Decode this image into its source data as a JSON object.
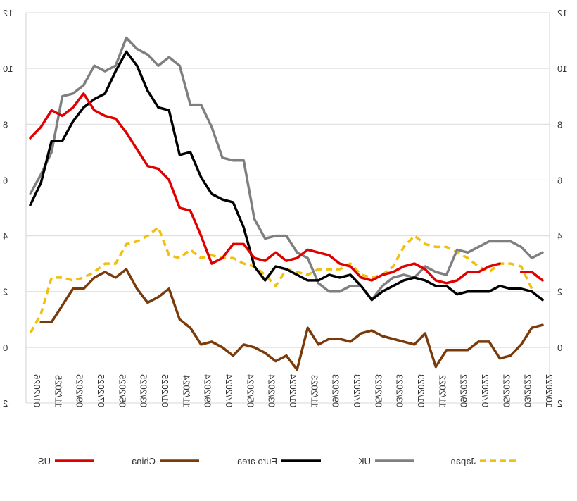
{
  "chart_data": {
    "type": "line",
    "mirrored": true,
    "title": "",
    "xlabel": "",
    "ylabel": "",
    "ylim": [
      -2,
      12
    ],
    "yticks": [
      "12",
      "10",
      "8",
      "6",
      "4",
      "2",
      "0",
      "-2"
    ],
    "gridlines": true,
    "legend_position": "bottom",
    "x_tick_labels": [
      "10/2022",
      "03/2022",
      "05/2022",
      "07/2022",
      "09/2022",
      "11/2022",
      "01/2023",
      "03/2023",
      "05/2023",
      "07/2023",
      "09/2023",
      "11/2023",
      "01/2024",
      "03/2024",
      "05/2024",
      "07/2024",
      "09/2024",
      "11/2024",
      "01/2025",
      "03/2025",
      "05/2025",
      "07/2025",
      "09/2025",
      "11/2025",
      "01/2026"
    ],
    "series": [
      {
        "name": "US",
        "color": "#e00000",
        "dash": false,
        "values": [
          2.4,
          2.7,
          2.7,
          null,
          3.0,
          2.9,
          2.7,
          2.7,
          2.4,
          2.3,
          2.4,
          2.8,
          3.0,
          2.9,
          2.7,
          2.6,
          2.4,
          2.5,
          2.9,
          3.0,
          3.3,
          3.4,
          3.5,
          3.2,
          3.1,
          3.4,
          3.1,
          3.2,
          3.7,
          3.7,
          3.2,
          3.0,
          4.0,
          4.9,
          5.0,
          6.0,
          6.4,
          6.5,
          7.1,
          7.7,
          8.2,
          8.3,
          8.5,
          9.1,
          8.6,
          8.3,
          8.5,
          7.9,
          7.5
        ]
      },
      {
        "name": "China",
        "color": "#7a3a0a",
        "dash": false,
        "values": [
          0.8,
          0.7,
          0.1,
          -0.3,
          -0.4,
          0.2,
          0.2,
          -0.1,
          -0.1,
          -0.1,
          -0.7,
          0.5,
          0.1,
          0.2,
          0.3,
          0.4,
          0.6,
          0.5,
          0.2,
          0.3,
          0.3,
          0.1,
          0.7,
          -0.8,
          -0.3,
          -0.5,
          -0.2,
          0.0,
          0.1,
          -0.3,
          0.0,
          0.2,
          0.1,
          0.7,
          1.0,
          2.1,
          1.8,
          1.6,
          2.1,
          2.8,
          2.5,
          2.7,
          2.5,
          2.1,
          2.1,
          1.5,
          0.9,
          0.9,
          null
        ]
      },
      {
        "name": "Euro area",
        "color": "#000000",
        "dash": false,
        "values": [
          1.7,
          2.0,
          2.1,
          2.1,
          2.2,
          2.0,
          2.0,
          2.0,
          1.9,
          2.2,
          2.2,
          2.4,
          2.5,
          2.4,
          2.2,
          2.0,
          1.7,
          2.2,
          2.6,
          2.5,
          2.6,
          2.4,
          2.4,
          2.6,
          2.8,
          2.9,
          2.4,
          2.9,
          4.3,
          5.2,
          5.3,
          5.5,
          6.1,
          7.0,
          6.9,
          8.5,
          8.6,
          9.2,
          10.1,
          10.6,
          9.9,
          9.1,
          8.9,
          8.6,
          8.1,
          7.4,
          7.4,
          5.9,
          5.1
        ]
      },
      {
        "name": "UK",
        "color": "#7f7f7f",
        "dash": false,
        "values": [
          null,
          null,
          null,
          null,
          null,
          null,
          null,
          null,
          null,
          null,
          null,
          null,
          null,
          null,
          null,
          null,
          null,
          null,
          null,
          null,
          null,
          null,
          null,
          null,
          null,
          null,
          null,
          null,
          null,
          null,
          null,
          null,
          null,
          null,
          null,
          null,
          null,
          null,
          null,
          null,
          null,
          null,
          null,
          null,
          null,
          null,
          null,
          null,
          null
        ]
      },
      {
        "name": "Japan",
        "color": "#f0c010",
        "dash": true,
        "values": [
          null,
          2.1,
          2.9,
          3.0,
          3.0,
          2.7,
          2.9,
          3.2,
          3.4,
          3.6,
          3.6,
          3.7,
          4.0,
          3.6,
          2.9,
          2.6,
          2.5,
          2.6,
          3.0,
          2.8,
          2.8,
          2.8,
          2.6,
          2.7,
          2.8,
          2.2,
          2.6,
          2.9,
          3.0,
          3.2,
          3.2,
          3.3,
          3.2,
          3.5,
          3.2,
          3.3,
          4.3,
          4.0,
          3.8,
          3.7,
          3.0,
          3.0,
          2.7,
          2.5,
          2.4,
          2.5,
          2.5,
          1.2,
          0.5
        ]
      }
    ],
    "uk_values": [
      3.4,
      3.2,
      3.6,
      3.8,
      3.8,
      3.8,
      3.6,
      3.4,
      3.5,
      2.6,
      2.7,
      2.9,
      2.5,
      2.6,
      2.5,
      2.2,
      1.7,
      2.2,
      2.2,
      2.0,
      2.0,
      2.3,
      3.2,
      3.4,
      4.0,
      4.0,
      3.9,
      4.6,
      6.7,
      6.7,
      6.8,
      7.9,
      8.7,
      8.7,
      10.1,
      10.4,
      10.1,
      10.5,
      10.7,
      11.1,
      10.1,
      9.9,
      10.1,
      9.4,
      9.1,
      9.0,
      7.0,
      6.2,
      5.5
    ]
  }
}
